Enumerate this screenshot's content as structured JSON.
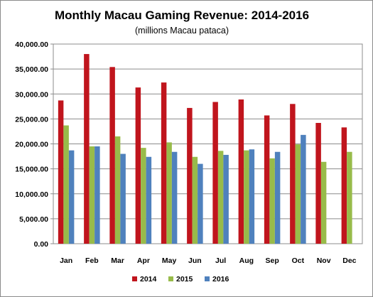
{
  "chart_data": {
    "type": "bar",
    "title": "Monthly Macau Gaming Revenue: 2014-2016",
    "subtitle": "(millions Macau pataca)",
    "xlabel": "",
    "ylabel": "",
    "ylim": [
      0,
      40000
    ],
    "yticks": [
      "0.00",
      "5,000.00",
      "10,000.00",
      "15,000.00",
      "20,000.00",
      "25,000.00",
      "30,000.00",
      "35,000.00",
      "40,000.00"
    ],
    "ytick_values": [
      0,
      5000,
      10000,
      15000,
      20000,
      25000,
      30000,
      35000,
      40000
    ],
    "grid": true,
    "legend_position": "bottom",
    "categories": [
      "Jan",
      "Feb",
      "Mar",
      "Apr",
      "May",
      "Jun",
      "Jul",
      "Aug",
      "Sep",
      "Oct",
      "Nov",
      "Dec"
    ],
    "series": [
      {
        "name": "2014",
        "color": "#c0151d",
        "values": [
          28700,
          38000,
          35400,
          31300,
          32300,
          27200,
          28400,
          28900,
          25700,
          28000,
          24200,
          23300
        ]
      },
      {
        "name": "2015",
        "color": "#98bb4a",
        "values": [
          23700,
          19500,
          21500,
          19200,
          20300,
          17400,
          18600,
          18700,
          17100,
          19900,
          16400,
          18400
        ]
      },
      {
        "name": "2016",
        "color": "#4f81bd",
        "values": [
          18700,
          19500,
          18000,
          17400,
          18400,
          16000,
          17800,
          18900,
          18400,
          21800,
          null,
          null
        ]
      }
    ]
  }
}
